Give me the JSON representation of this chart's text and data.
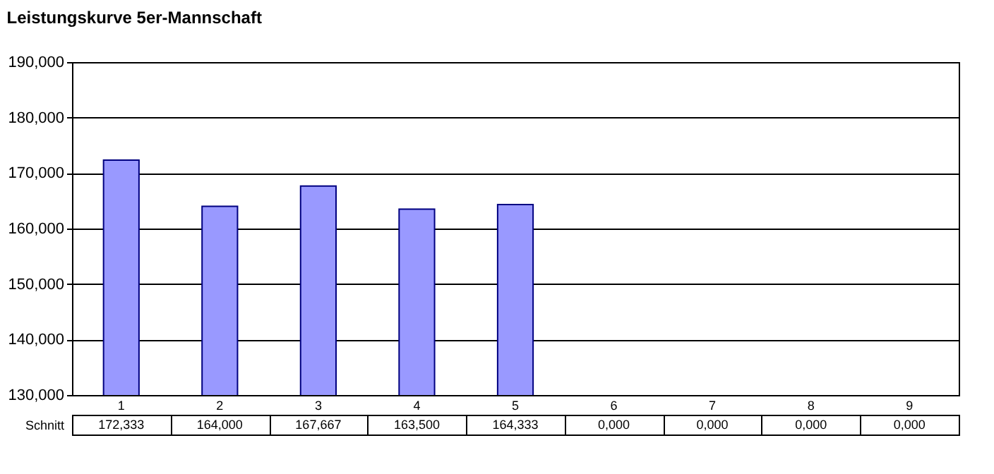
{
  "chart_data": {
    "type": "bar",
    "title": "Leistungskurve 5er-Mannschaft",
    "categories": [
      "1",
      "2",
      "3",
      "4",
      "5",
      "6",
      "7",
      "8",
      "9"
    ],
    "series": [
      {
        "name": "Schnitt",
        "color": "#9999ff",
        "values": [
          172.333,
          164.0,
          167.667,
          163.5,
          164.333,
          null,
          null,
          null,
          null
        ],
        "value_labels": [
          "172,333",
          "164,000",
          "167,667",
          "163,500",
          "164,333",
          "0,000",
          "0,000",
          "0,000",
          "0,000"
        ]
      }
    ],
    "ylim": [
      130,
      190
    ],
    "yticks": [
      {
        "value": 130,
        "label": "130,000"
      },
      {
        "value": 140,
        "label": "140,000"
      },
      {
        "value": 150,
        "label": "150,000"
      },
      {
        "value": 160,
        "label": "160,000"
      },
      {
        "value": 170,
        "label": "170,000"
      },
      {
        "value": 180,
        "label": "180,000"
      },
      {
        "value": 190,
        "label": "190,000"
      }
    ],
    "grid": "y",
    "legend": false
  }
}
